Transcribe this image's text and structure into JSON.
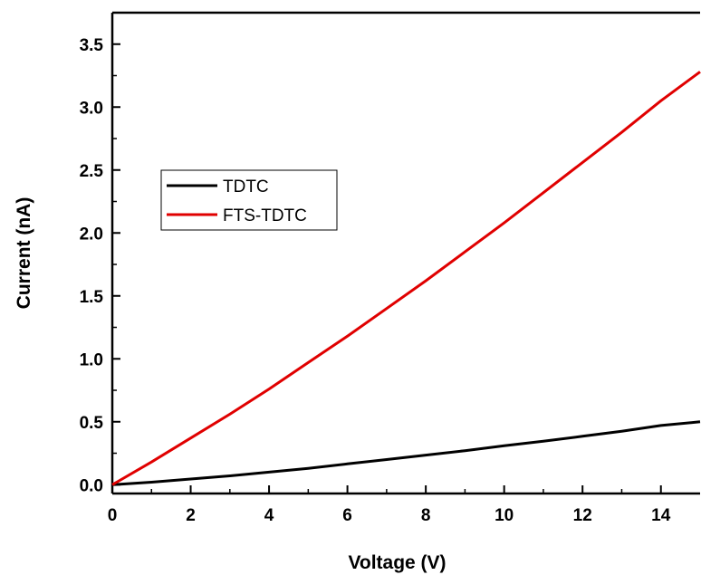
{
  "chart_data": {
    "type": "line",
    "xlabel": "Voltage (V)",
    "ylabel": "Current (nA)",
    "xlim": [
      0,
      15
    ],
    "ylim": [
      -0.07,
      3.75
    ],
    "x_ticks": [
      "0",
      "2",
      "4",
      "6",
      "8",
      "10",
      "12",
      "14"
    ],
    "y_ticks": [
      "0.0",
      "0.5",
      "1.0",
      "1.5",
      "2.0",
      "2.5",
      "3.0",
      "3.5"
    ],
    "grid": false,
    "legend": "upper-left",
    "series": [
      {
        "name": "TDTC",
        "color": "#000000",
        "x": [
          0,
          1,
          2,
          3,
          4,
          5,
          6,
          7,
          8,
          9,
          10,
          11,
          12,
          13,
          14,
          15
        ],
        "y": [
          0,
          0.02,
          0.045,
          0.07,
          0.1,
          0.13,
          0.165,
          0.2,
          0.235,
          0.27,
          0.31,
          0.345,
          0.385,
          0.425,
          0.47,
          0.5
        ]
      },
      {
        "name": "FTS-TDTC",
        "color": "#e00000",
        "x": [
          0,
          1,
          2,
          3,
          4,
          5,
          6,
          7,
          8,
          9,
          10,
          11,
          12,
          13,
          14,
          15
        ],
        "y": [
          0,
          0.18,
          0.37,
          0.56,
          0.76,
          0.97,
          1.18,
          1.4,
          1.62,
          1.85,
          2.08,
          2.32,
          2.56,
          2.8,
          3.05,
          3.28
        ]
      }
    ]
  }
}
